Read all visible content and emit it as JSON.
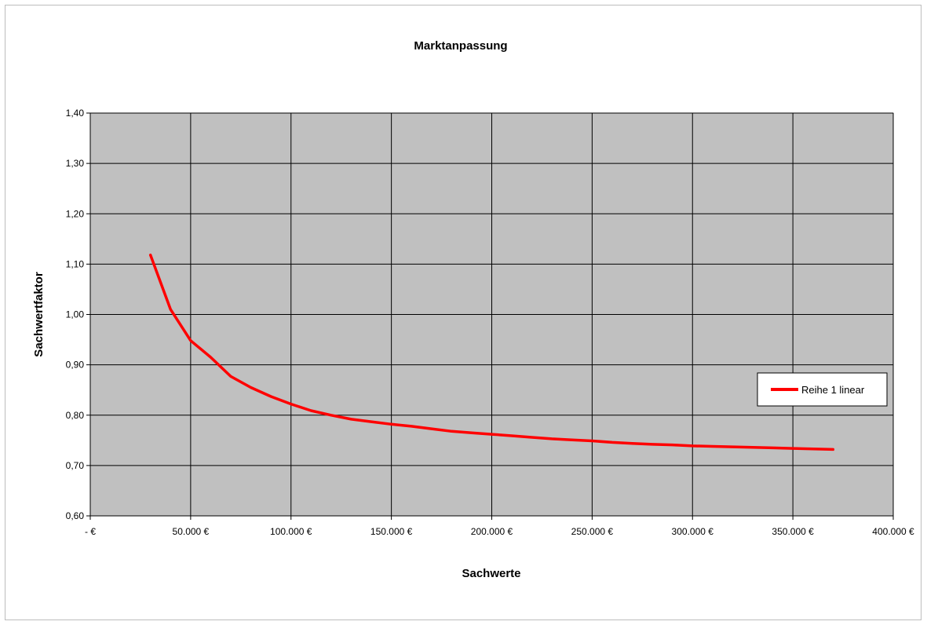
{
  "chart_data": {
    "type": "line",
    "title": "Marktanpassung",
    "xlabel": "Sachwerte",
    "ylabel": "Sachwertfaktor",
    "xlim": [
      0,
      400000
    ],
    "ylim": [
      0.6,
      1.4
    ],
    "x_ticks": [
      0,
      50000,
      100000,
      150000,
      200000,
      250000,
      300000,
      350000,
      400000
    ],
    "x_tick_labels": [
      "- €",
      "50.000 €",
      "100.000 €",
      "150.000 €",
      "200.000 €",
      "250.000 €",
      "300.000 €",
      "350.000 €",
      "400.000 €"
    ],
    "y_ticks": [
      0.6,
      0.7,
      0.8,
      0.9,
      1.0,
      1.1,
      1.2,
      1.3,
      1.4
    ],
    "y_tick_labels": [
      "0,60",
      "0,70",
      "0,80",
      "0,90",
      "1,00",
      "1,10",
      "1,20",
      "1,30",
      "1,40"
    ],
    "grid": true,
    "plot_background": "#c0c0c0",
    "legend_position": "right",
    "series": [
      {
        "name": "Reihe 1 linear",
        "color": "#ff0000",
        "x": [
          30000,
          40000,
          50000,
          60000,
          70000,
          80000,
          90000,
          100000,
          110000,
          120000,
          130000,
          140000,
          150000,
          160000,
          170000,
          180000,
          190000,
          200000,
          210000,
          220000,
          230000,
          240000,
          250000,
          260000,
          270000,
          280000,
          290000,
          300000,
          310000,
          320000,
          330000,
          340000,
          350000,
          360000,
          370000
        ],
        "y": [
          1.118,
          1.01,
          0.948,
          0.915,
          0.877,
          0.855,
          0.837,
          0.822,
          0.809,
          0.8,
          0.792,
          0.787,
          0.782,
          0.778,
          0.773,
          0.768,
          0.765,
          0.762,
          0.759,
          0.756,
          0.753,
          0.751,
          0.749,
          0.746,
          0.744,
          0.742,
          0.741,
          0.739,
          0.738,
          0.737,
          0.736,
          0.735,
          0.734,
          0.733,
          0.732
        ]
      }
    ]
  }
}
